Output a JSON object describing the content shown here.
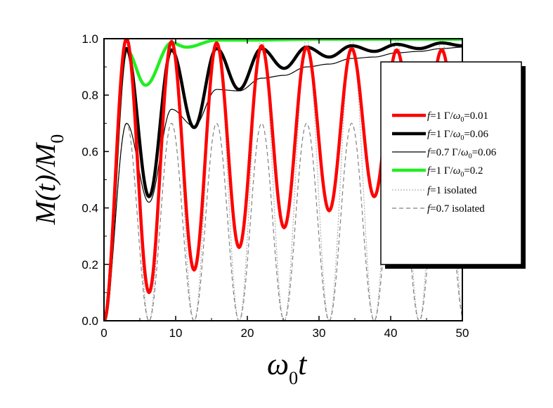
{
  "chart_data": {
    "type": "line",
    "xlabel": "ω0t",
    "ylabel": "M(t)/M0",
    "xlim": [
      0,
      50
    ],
    "ylim": [
      0,
      1.0
    ],
    "x_ticks": [
      0,
      10,
      20,
      30,
      40,
      50
    ],
    "y_ticks": [
      0.0,
      0.2,
      0.4,
      0.6,
      0.8,
      1.0
    ],
    "x_tick_labels": [
      "0",
      "10",
      "20",
      "30",
      "40",
      "50"
    ],
    "y_tick_labels": [
      "0.0",
      "0.2",
      "0.4",
      "0.6",
      "0.8",
      "1.0"
    ],
    "grid": false,
    "legend_position": "right",
    "series": [
      {
        "name": "f=1 Γ/ω0=0.01",
        "legend": {
          "f": "f",
          "eq": "=1 Γ/",
          "omega": "ω",
          "sub": "0",
          "tail": "=0.01"
        },
        "color": "#ff0000",
        "style": "thick-solid",
        "extrema": [
          [
            0,
            0
          ],
          [
            3.14,
            1.0
          ],
          [
            6.28,
            0.1
          ],
          [
            9.42,
            0.99
          ],
          [
            12.57,
            0.18
          ],
          [
            15.71,
            0.985
          ],
          [
            18.85,
            0.26
          ],
          [
            21.99,
            0.975
          ],
          [
            25.13,
            0.33
          ],
          [
            28.27,
            0.97
          ],
          [
            31.42,
            0.39
          ],
          [
            34.56,
            0.965
          ],
          [
            37.7,
            0.44
          ],
          [
            40.84,
            0.96
          ],
          [
            43.98,
            0.49
          ],
          [
            47.12,
            0.96
          ],
          [
            50,
            0.55
          ]
        ]
      },
      {
        "name": "f=1 Γ/ω0=0.06",
        "legend": {
          "f": "f",
          "eq": "=1 Γ/",
          "omega": "ω",
          "sub": "0",
          "tail": "=0.06"
        },
        "color": "#000000",
        "style": "thick-solid",
        "extrema": [
          [
            0,
            0
          ],
          [
            3.14,
            0.965
          ],
          [
            6.28,
            0.44
          ],
          [
            9.42,
            0.96
          ],
          [
            12.57,
            0.685
          ],
          [
            15.71,
            0.965
          ],
          [
            18.85,
            0.82
          ],
          [
            21.99,
            0.965
          ],
          [
            25.13,
            0.895
          ],
          [
            28.27,
            0.97
          ],
          [
            31.42,
            0.935
          ],
          [
            34.56,
            0.975
          ],
          [
            37.7,
            0.955
          ],
          [
            40.84,
            0.98
          ],
          [
            43.98,
            0.965
          ],
          [
            47.12,
            0.985
          ],
          [
            50,
            0.975
          ]
        ]
      },
      {
        "name": "f=0.7 Γ/ω0=0.06",
        "legend": {
          "f": "f",
          "eq": "=0.7 Γ/",
          "omega": "ω",
          "sub": "0",
          "tail": "=0.06"
        },
        "color": "#000000",
        "style": "thin-solid",
        "extrema": [
          [
            0,
            0
          ],
          [
            3.14,
            0.7
          ],
          [
            6.28,
            0.42
          ],
          [
            9.42,
            0.75
          ],
          [
            12.57,
            0.69
          ],
          [
            15.71,
            0.82
          ],
          [
            18.85,
            0.815
          ],
          [
            21.99,
            0.86
          ],
          [
            25.13,
            0.87
          ],
          [
            28.27,
            0.9
          ],
          [
            31.42,
            0.91
          ],
          [
            34.56,
            0.93
          ],
          [
            37.7,
            0.935
          ],
          [
            40.84,
            0.95
          ],
          [
            43.98,
            0.955
          ],
          [
            47.12,
            0.965
          ],
          [
            50,
            0.97
          ]
        ]
      },
      {
        "name": "f=1 Γ/ω0=0.2",
        "legend": {
          "f": "f",
          "eq": "=1 Γ/",
          "omega": "ω",
          "sub": "0",
          "tail": "=0.2"
        },
        "color": "#22ee22",
        "style": "thick-solid",
        "extrema": [
          [
            0,
            0
          ],
          [
            3.14,
            0.96
          ],
          [
            5.8,
            0.835
          ],
          [
            9.42,
            0.985
          ],
          [
            11.5,
            0.97
          ],
          [
            15.71,
            0.995
          ],
          [
            20,
            0.995
          ],
          [
            30,
            0.998
          ],
          [
            40,
            0.998
          ],
          [
            50,
            0.998
          ]
        ]
      },
      {
        "name": "f=1 isolated",
        "legend": {
          "f": "f",
          "eq": "=1  isolated",
          "omega": "",
          "sub": "",
          "tail": ""
        },
        "color": "#b0b0b0",
        "style": "dotted",
        "formula": "sin2",
        "amplitude": 1.0
      },
      {
        "name": "f=0.7 isolated",
        "legend": {
          "f": "f",
          "eq": "=0.7  isolated",
          "omega": "",
          "sub": "",
          "tail": ""
        },
        "color": "#808080",
        "style": "dashed",
        "formula": "sin2",
        "amplitude": 0.7
      }
    ]
  }
}
